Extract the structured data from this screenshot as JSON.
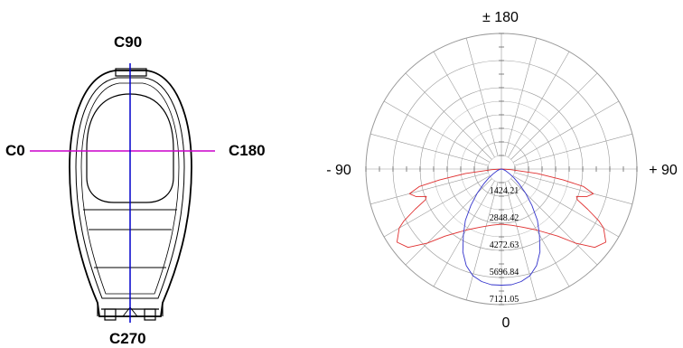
{
  "luminaire": {
    "planes": {
      "c0": "C0",
      "c90": "C90",
      "c180": "C180",
      "c270": "C270"
    },
    "colors": {
      "c0_c180_line": "#cc00cc",
      "c90_c270_line": "#0000cc",
      "outline": "#000000"
    }
  },
  "polar": {
    "angle_labels": {
      "top": "± 180",
      "left": "- 90",
      "right": "+ 90",
      "bottom": "0"
    },
    "ring_values": [
      "1424.21",
      "2848.42",
      "4272.63",
      "5696.84",
      "7121.05"
    ],
    "ring_max": 7121.05,
    "spoke_step_deg": 15,
    "colors": {
      "grid": "#999999",
      "c0_c180_curve": "#e03030",
      "c90_c270_curve": "#3333cc"
    }
  },
  "chart_data": {
    "type": "polar",
    "angle_unit": "deg",
    "radial_range": [
      0,
      7121.05
    ],
    "series": [
      {
        "plane": "C0-C180",
        "color": "#e03030",
        "angles": [
          0,
          10,
          20,
          30,
          40,
          45,
          50,
          55,
          60,
          62,
          65,
          68,
          70,
          72,
          75,
          78,
          80,
          83,
          86,
          90
        ],
        "values": [
          2900,
          3000,
          3250,
          3700,
          4600,
          5500,
          6400,
          6700,
          6200,
          5800,
          5000,
          4300,
          4200,
          4700,
          5000,
          4400,
          3300,
          1900,
          500,
          0
        ]
      },
      {
        "plane": "C90-C270",
        "color": "#3333cc",
        "angles": [
          0,
          5,
          10,
          15,
          20,
          25,
          30,
          35,
          40,
          45,
          50,
          55,
          60,
          70,
          80,
          90
        ],
        "values": [
          6100,
          6100,
          6000,
          5800,
          5400,
          4800,
          4000,
          3300,
          2500,
          1800,
          1200,
          800,
          500,
          200,
          60,
          0
        ]
      }
    ]
  }
}
